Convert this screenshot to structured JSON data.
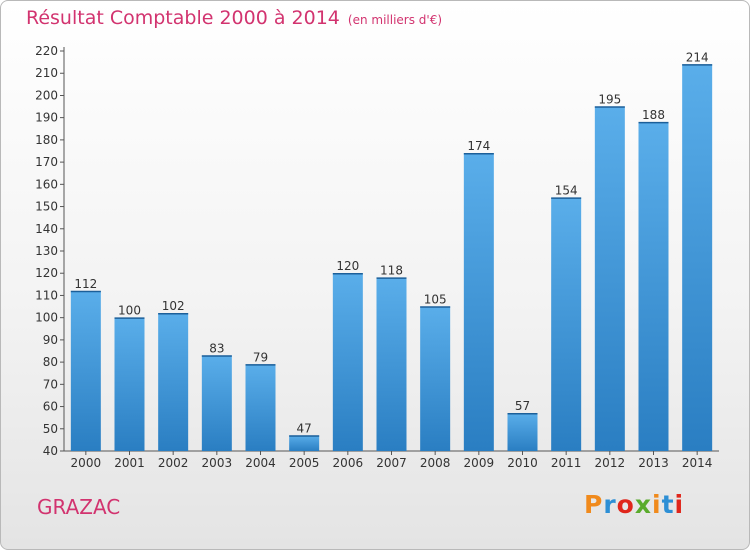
{
  "header": {
    "title": "Résultat Comptable 2000 à 2014",
    "unit": "(en milliers d'€)"
  },
  "footer": {
    "town": "GRAZAC",
    "logo": "Proxiti"
  },
  "colors": {
    "bar_light": "#5aaeea",
    "bar_dark": "#2a7ec2",
    "title": "#d2336f",
    "logo": [
      "#f08a1c",
      "#2d8fd5",
      "#e0261b",
      "#5aab2c",
      "#f08a1c",
      "#2d8fd5",
      "#e0261b"
    ]
  },
  "chart_data": {
    "type": "bar",
    "title": "Résultat Comptable 2000 à 2014",
    "xlabel": "",
    "ylabel": "",
    "categories": [
      "2000",
      "2001",
      "2002",
      "2003",
      "2004",
      "2005",
      "2006",
      "2007",
      "2008",
      "2009",
      "2010",
      "2011",
      "2012",
      "2013",
      "2014"
    ],
    "values": [
      112,
      100,
      102,
      83,
      79,
      47,
      120,
      118,
      105,
      174,
      57,
      154,
      195,
      188,
      214
    ],
    "ylim": [
      40,
      220
    ],
    "ytick_step": 10,
    "grid": false,
    "legend": "none",
    "data_labels": true
  }
}
